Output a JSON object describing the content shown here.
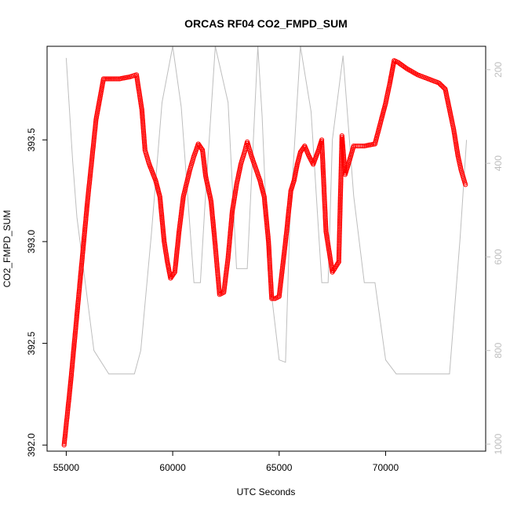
{
  "chart_data": {
    "type": "scatter",
    "title": "ORCAS RF04 CO2_FMPD_SUM",
    "xlabel": "UTC Seconds",
    "ylabel": "CO2_FMPD_SUM",
    "xlim": [
      54100,
      74700
    ],
    "ylim": [
      391.97,
      393.96
    ],
    "xticks": [
      55000,
      60000,
      65000,
      70000
    ],
    "yticks": [
      392.0,
      392.5,
      393.0,
      393.5
    ],
    "y2lim": [
      1015,
      150
    ],
    "y2ticks": [
      200,
      400,
      600,
      800,
      1000
    ],
    "grid": false,
    "series": [
      {
        "marker": "open-circle",
        "color": "#ff0000",
        "x": [
          54900,
          55200,
          55600,
          56000,
          56400,
          56750,
          57200,
          57500,
          58000,
          58300,
          58550,
          58700,
          58900,
          59200,
          59400,
          59600,
          59750,
          59900,
          60100,
          60300,
          60500,
          60800,
          61000,
          61200,
          61400,
          61550,
          61800,
          62000,
          62200,
          62400,
          62600,
          62800,
          63000,
          63200,
          63400,
          63500,
          63700,
          63900,
          64100,
          64300,
          64500,
          64650,
          64800,
          65000,
          65300,
          65550,
          65700,
          65850,
          66000,
          66200,
          66400,
          66600,
          66850,
          67000,
          67200,
          67500,
          67800,
          67950,
          68100,
          68250,
          68500,
          68750,
          69000,
          69500,
          69800,
          70000,
          70200,
          70400,
          70600,
          71000,
          71500,
          72000,
          72500,
          72800,
          73000,
          73200,
          73400,
          73550,
          73750
        ],
        "y": [
          392.0,
          392.3,
          392.75,
          393.2,
          393.6,
          393.8,
          393.8,
          393.8,
          393.81,
          393.82,
          393.65,
          393.45,
          393.38,
          393.3,
          393.22,
          393.0,
          392.9,
          392.82,
          392.85,
          393.05,
          393.22,
          393.35,
          393.42,
          393.48,
          393.45,
          393.32,
          393.2,
          392.98,
          392.74,
          392.75,
          392.92,
          393.15,
          393.28,
          393.38,
          393.45,
          393.49,
          393.42,
          393.36,
          393.3,
          393.22,
          393.0,
          392.72,
          392.72,
          392.73,
          393.0,
          393.25,
          393.3,
          393.38,
          393.44,
          393.47,
          393.42,
          393.38,
          393.45,
          393.5,
          393.05,
          392.85,
          392.9,
          393.52,
          393.33,
          393.38,
          393.47,
          393.47,
          393.47,
          393.48,
          393.6,
          393.68,
          393.78,
          393.89,
          393.88,
          393.85,
          393.82,
          393.8,
          393.78,
          393.75,
          393.65,
          393.55,
          393.42,
          393.35,
          393.28
        ]
      }
    ],
    "secondary_line": {
      "color": "#bebebe",
      "x": [
        55000,
        55300,
        55500,
        56300,
        57000,
        57500,
        58200,
        58500,
        59000,
        59500,
        60000,
        60400,
        61000,
        61300,
        61500,
        62000,
        62600,
        63000,
        63500,
        64000,
        64200,
        64500,
        65000,
        65300,
        65500,
        66000,
        66500,
        67000,
        67300,
        67500,
        68000,
        68500,
        69000,
        69500,
        70000,
        70500,
        71000,
        72000,
        72500,
        73000,
        73500,
        73800
      ],
      "y": [
        175,
        395,
        515,
        800,
        850,
        850,
        850,
        800,
        550,
        270,
        150,
        280,
        655,
        655,
        500,
        150,
        270,
        625,
        625,
        150,
        300,
        625,
        820,
        825,
        530,
        150,
        290,
        655,
        655,
        350,
        170,
        470,
        655,
        655,
        820,
        850,
        850,
        850,
        850,
        850,
        560,
        350
      ]
    }
  }
}
